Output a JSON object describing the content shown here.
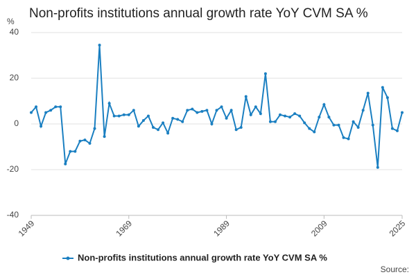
{
  "chart_data": {
    "type": "line",
    "title": "Non-profits institutions annual growth rate YoY CVM SA %",
    "y_label": "%",
    "source": "Source:",
    "x": [
      1949,
      1950,
      1951,
      1952,
      1953,
      1954,
      1955,
      1956,
      1957,
      1958,
      1959,
      1960,
      1961,
      1962,
      1963,
      1964,
      1965,
      1966,
      1967,
      1968,
      1969,
      1970,
      1971,
      1972,
      1973,
      1974,
      1975,
      1976,
      1977,
      1978,
      1979,
      1980,
      1981,
      1982,
      1983,
      1984,
      1985,
      1986,
      1987,
      1988,
      1989,
      1990,
      1991,
      1992,
      1993,
      1994,
      1995,
      1996,
      1997,
      1998,
      1999,
      2000,
      2001,
      2002,
      2003,
      2004,
      2005,
      2006,
      2007,
      2008,
      2009,
      2010,
      2011,
      2012,
      2013,
      2014,
      2015,
      2016,
      2017,
      2018,
      2019,
      2020,
      2021,
      2022,
      2023,
      2024,
      2025
    ],
    "series": [
      {
        "name": "Non-profits institutions annual growth rate YoY CVM SA %",
        "color": "#1a7fc1",
        "values": [
          5,
          7.5,
          -1,
          5,
          6,
          7.5,
          7.5,
          -17.5,
          -12,
          -12,
          -7.5,
          -7,
          -8.5,
          -2,
          34.5,
          -5.5,
          9,
          3.5,
          3.5,
          4,
          4,
          6,
          -1,
          1.5,
          3.5,
          -1.5,
          -2.5,
          0.5,
          -4,
          2.5,
          2,
          1,
          6,
          6.5,
          5,
          5.5,
          6,
          0,
          6,
          7.5,
          2.5,
          6,
          -2.5,
          -1.5,
          12,
          4,
          7.5,
          4.5,
          22,
          1,
          1,
          4,
          3.5,
          3,
          4.5,
          3.5,
          0.5,
          -2,
          -3.5,
          3,
          8.5,
          3,
          -0.5,
          -0.5,
          -6,
          -6.5,
          1,
          -1.5,
          6,
          13.5,
          -0.5,
          -19,
          16,
          11.5,
          -2,
          -3,
          5
        ]
      }
    ],
    "xlim": [
      1949,
      2025
    ],
    "xticks": [
      1949,
      1969,
      1989,
      2009,
      2025
    ],
    "ylim": [
      -40,
      40
    ],
    "yticks": [
      -40,
      -20,
      0,
      20,
      40
    ],
    "grid": true,
    "legend": "bottom"
  }
}
